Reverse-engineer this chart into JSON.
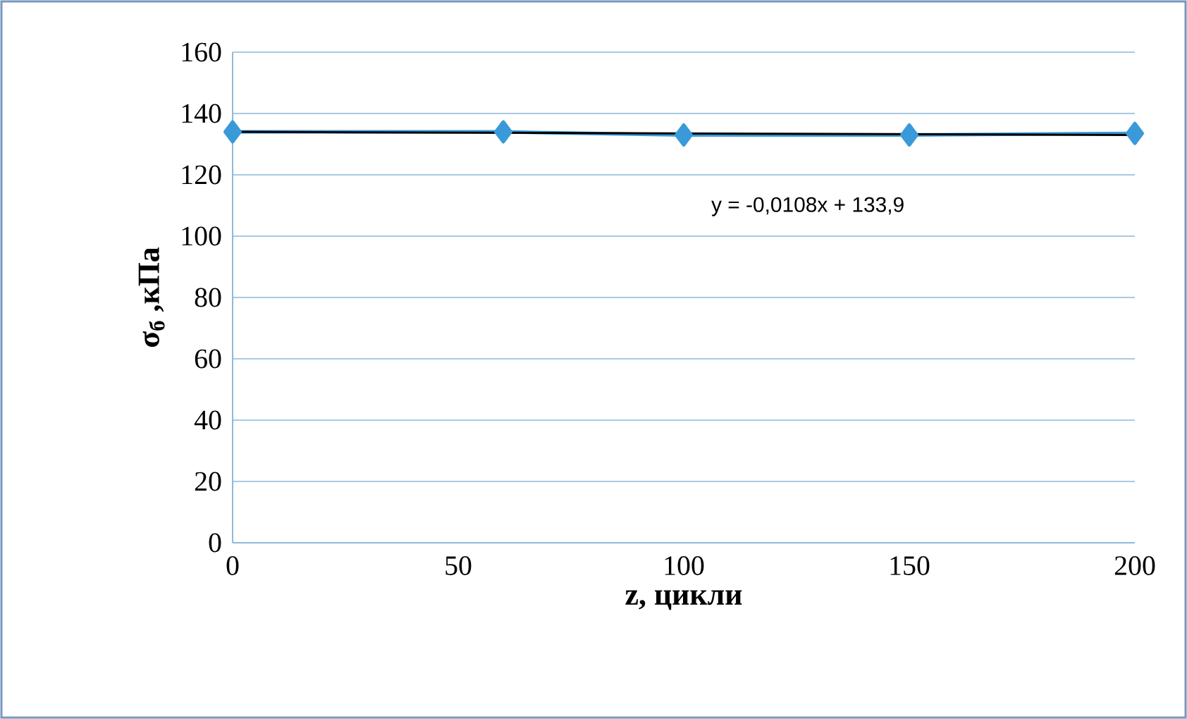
{
  "chart_data": {
    "type": "line",
    "xlabel": "z, цикли",
    "ylabel": "σ$_{б}$ ,кПа",
    "xlim": [
      0,
      200
    ],
    "xticks": [
      0,
      50,
      100,
      150,
      200
    ],
    "ylim": [
      0,
      160
    ],
    "yticks": [
      0,
      20,
      40,
      60,
      80,
      100,
      120,
      140,
      160
    ],
    "grid": "y",
    "series": [
      {
        "color": "#3a9ad9",
        "marker": "diamond",
        "x": [
          0,
          60,
          100,
          150,
          200
        ],
        "values": [
          134,
          134,
          133,
          133,
          133.5
        ]
      },
      {
        "color": "#000000",
        "marker": "none",
        "x": [
          0,
          200
        ],
        "values": [
          134,
          133
        ]
      }
    ],
    "annotations": [
      "y = -0,0108x + 133,9"
    ]
  }
}
